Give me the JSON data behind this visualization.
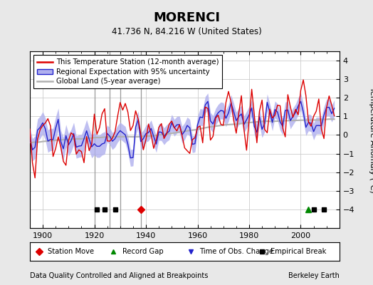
{
  "title": "MORENCI",
  "subtitle": "41.736 N, 84.216 W (United States)",
  "ylabel": "Temperature Anomaly (°C)",
  "footer_left": "Data Quality Controlled and Aligned at Breakpoints",
  "footer_right": "Berkeley Earth",
  "ylim": [
    -5,
    4.5
  ],
  "yticks": [
    -4,
    -3,
    -2,
    -1,
    0,
    1,
    2,
    3,
    4
  ],
  "xlim": [
    1895,
    2015
  ],
  "xticks": [
    1900,
    1920,
    1940,
    1960,
    1980,
    2000
  ],
  "bg_color": "#e8e8e8",
  "plot_bg_color": "#ffffff",
  "station_color": "#dd0000",
  "regional_color": "#2222cc",
  "regional_fill_color": "#b0b0ee",
  "global_color": "#b0b0b0",
  "grid_color": "#cccccc",
  "vline_color": "#999999",
  "vlines_x": [
    1920,
    1926,
    1930,
    1938
  ],
  "station_move_x": [
    1938
  ],
  "record_gap_x": [
    2003
  ],
  "time_obs_x": [],
  "empirical_break_x": [
    1921,
    1924,
    1928,
    2005,
    2009
  ],
  "seed": 17
}
